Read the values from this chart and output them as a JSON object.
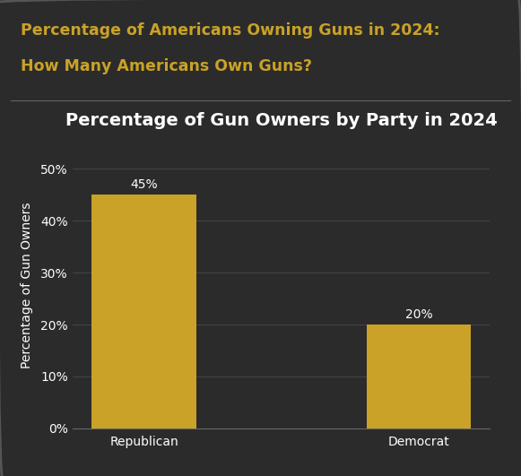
{
  "categories": [
    "Republican",
    "Democrat"
  ],
  "values": [
    45,
    20
  ],
  "bar_color": "#C9A227",
  "background_color": "#2b2b2b",
  "text_color": "#ffffff",
  "title_color": "#C9A227",
  "chart_title": "Percentage of Gun Owners by Party in 2024",
  "header_line1": "Percentage of Americans Owning Guns in 2024:",
  "header_line2": "How Many Americans Own Guns?",
  "ylabel": "Percentage of Gun Owners",
  "ylim": [
    0,
    55
  ],
  "yticks": [
    0,
    10,
    20,
    30,
    40,
    50
  ],
  "ytick_labels": [
    "0%",
    "10%",
    "20%",
    "30%",
    "40%",
    "50%"
  ],
  "bar_labels": [
    "45%",
    "20%"
  ],
  "grid_color": "#4a4a4a",
  "divider_color": "#666666",
  "border_color": "#555555",
  "header_fontsize": 12.5,
  "chart_title_fontsize": 14,
  "tick_fontsize": 10,
  "ylabel_fontsize": 10,
  "bar_label_fontsize": 10
}
